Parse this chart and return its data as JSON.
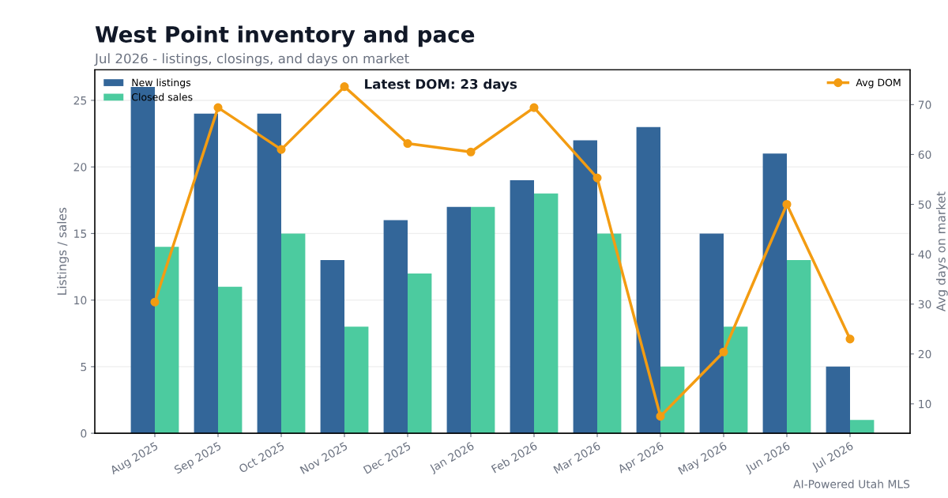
{
  "chart_data": {
    "type": "bar",
    "title": "West Point inventory and pace",
    "subtitle": "Jul 2026 - listings, closings, and days on market",
    "ylabel": "Listings / sales",
    "y2label": "Avg days on market",
    "categories": [
      "Aug 2025",
      "Sep 2025",
      "Oct 2025",
      "Nov 2025",
      "Dec 2025",
      "Jan 2026",
      "Feb 2026",
      "Mar 2026",
      "Apr 2026",
      "May 2026",
      "Jun 2026",
      "Jul 2026"
    ],
    "series": [
      {
        "name": "New listings",
        "color": "#336699",
        "values": [
          26,
          24,
          24,
          13,
          16,
          17,
          19,
          22,
          23,
          15,
          21,
          5
        ]
      },
      {
        "name": "Closed sales",
        "color": "#4ccb9f",
        "values": [
          14,
          11,
          15,
          8,
          12,
          17,
          18,
          15,
          5,
          8,
          13,
          1
        ]
      },
      {
        "name": "Avg DOM",
        "type": "line",
        "axis": "y2",
        "color": "#f39c12",
        "marker": "circle",
        "values": [
          30.4,
          69.4,
          61.0,
          73.6,
          62.2,
          60.5,
          69.4,
          55.3,
          7.5,
          20.4,
          50,
          23
        ]
      }
    ],
    "ylim": [
      0,
      27.3
    ],
    "yticks": [
      0,
      5,
      10,
      15,
      20,
      25
    ],
    "y2lim": [
      4.1,
      77
    ],
    "y2ticks": [
      10,
      20,
      30,
      40,
      50,
      60,
      70
    ],
    "grid": "y",
    "legend": "top left",
    "annotations": [
      {
        "text": "Latest DOM: 23 days"
      },
      {
        "text": "AI-Powered Utah MLS"
      }
    ]
  }
}
